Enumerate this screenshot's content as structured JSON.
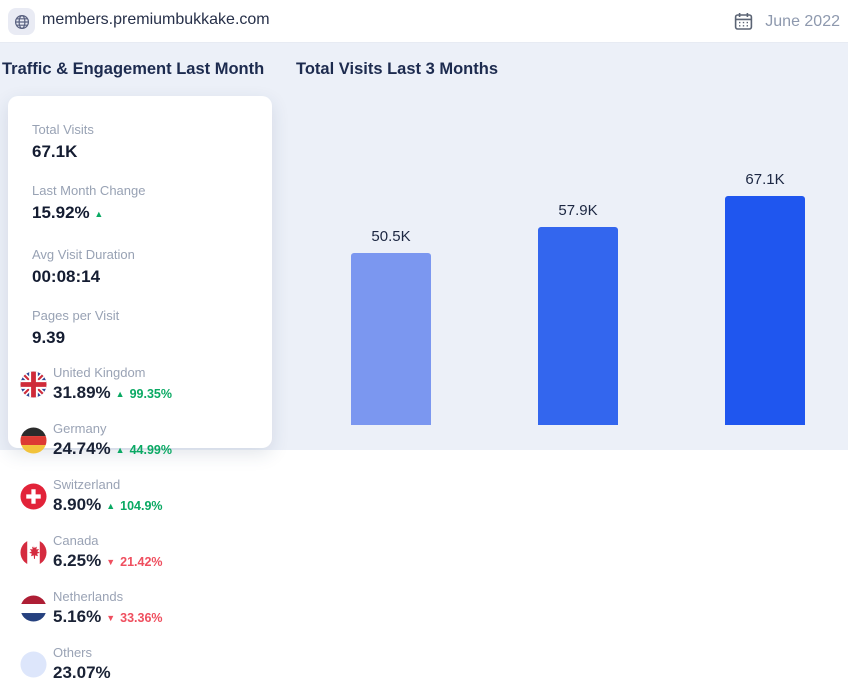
{
  "header": {
    "domain": "members.premiumbukkake.com",
    "date_label": "June 2022"
  },
  "sections": {
    "left_title": "Traffic & Engagement Last Month",
    "right_title": "Total Visits Last 3 Months"
  },
  "stats": [
    {
      "label": "Total Visits",
      "value": "67.1K",
      "direction": null
    },
    {
      "label": "Last Month Change",
      "value": "15.92%",
      "direction": "up"
    },
    {
      "label": "Avg Visit Duration",
      "value": "00:08:14",
      "direction": null
    },
    {
      "label": "Pages per Visit",
      "value": "9.39",
      "direction": null
    }
  ],
  "countries": [
    {
      "name": "United Kingdom",
      "share": "31.89%",
      "change": "99.35%",
      "direction": "up",
      "flag": "gb"
    },
    {
      "name": "Germany",
      "share": "24.74%",
      "change": "44.99%",
      "direction": "up",
      "flag": "de"
    },
    {
      "name": "Switzerland",
      "share": "8.90%",
      "change": "104.9%",
      "direction": "up",
      "flag": "ch"
    },
    {
      "name": "Canada",
      "share": "6.25%",
      "change": "21.42%",
      "direction": "down",
      "flag": "ca"
    },
    {
      "name": "Netherlands",
      "share": "5.16%",
      "change": "33.36%",
      "direction": "down",
      "flag": "nl"
    },
    {
      "name": "Others",
      "share": "23.07%",
      "change": null,
      "direction": null,
      "flag": "others"
    }
  ],
  "chart_data": {
    "type": "bar",
    "title": "Total Visits Last 3 Months",
    "categories": [
      "",
      "",
      ""
    ],
    "values": [
      50500,
      57900,
      67100
    ],
    "value_labels": [
      "50.5K",
      "57.9K",
      "67.1K"
    ],
    "ylim": [
      0,
      70000
    ],
    "grid": false,
    "legend": false,
    "bar_colors": [
      "#7b97f0",
      "#3366ee",
      "#1f56ef"
    ]
  },
  "colors": {
    "band_background": "#ecf0f8",
    "heading_text": "#1d2b4f",
    "value_text": "#141c31",
    "label_gray": "#98a2b4",
    "positive_green": "#0aa963",
    "negative_red": "#ef4f5f",
    "bar_light": "#7b97f0",
    "bar_mid": "#3366ee",
    "bar_dark": "#1f56ef"
  }
}
